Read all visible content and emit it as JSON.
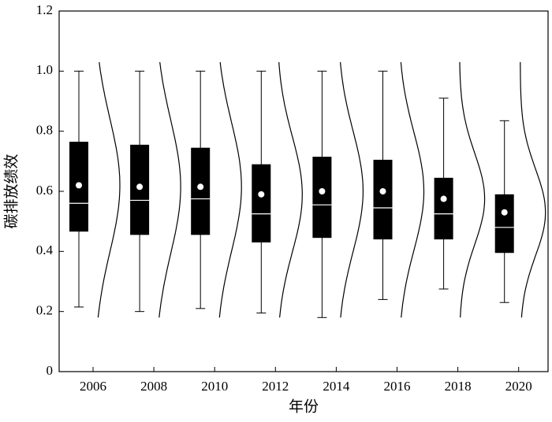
{
  "chart_data": {
    "type": "box",
    "x_label": "年份",
    "y_label": "碳排放绩效",
    "categories": [
      "2006",
      "2008",
      "2010",
      "2012",
      "2014",
      "2016",
      "2018",
      "2020"
    ],
    "min": [
      0.215,
      0.2,
      0.21,
      0.195,
      0.18,
      0.24,
      0.275,
      0.23
    ],
    "q1": [
      0.466,
      0.455,
      0.455,
      0.43,
      0.445,
      0.44,
      0.44,
      0.395
    ],
    "median": [
      0.56,
      0.57,
      0.575,
      0.525,
      0.555,
      0.545,
      0.525,
      0.48
    ],
    "q3": [
      0.765,
      0.755,
      0.745,
      0.69,
      0.715,
      0.705,
      0.645,
      0.59
    ],
    "max": [
      1.0,
      1.0,
      1.0,
      1.0,
      1.0,
      1.0,
      0.91,
      0.835
    ],
    "mean": [
      0.62,
      0.615,
      0.615,
      0.59,
      0.6,
      0.6,
      0.575,
      0.53
    ],
    "color": "#000000",
    "ylim": [
      0,
      1.2
    ],
    "yticks": [
      0,
      0.2,
      0.4,
      0.6,
      0.8,
      {
        "value": 1,
        "label": "1.0"
      },
      1.2
    ]
  }
}
